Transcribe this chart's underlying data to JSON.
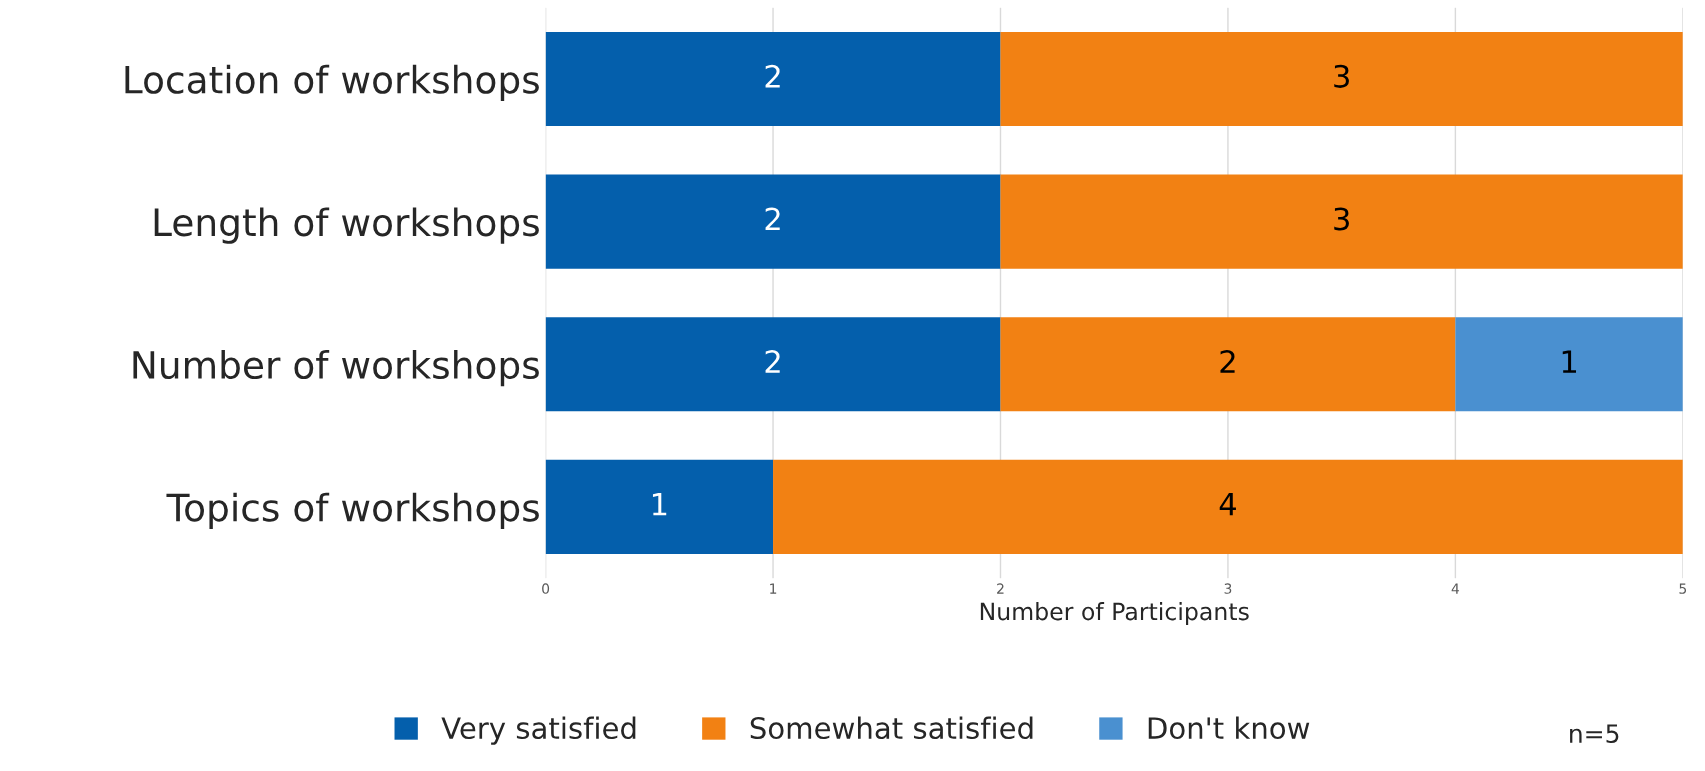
{
  "chart_data": {
    "type": "bar",
    "orientation": "horizontal",
    "stacked": true,
    "xlabel": "Number of Participants",
    "categories": [
      "Location of workshops",
      "Length of workshops",
      "Number of workshops",
      "Topics of workshops"
    ],
    "series": [
      {
        "name": "Very satisfied",
        "color": "#045fac",
        "values": [
          2,
          2,
          2,
          1
        ]
      },
      {
        "name": "Somewhat satisfied",
        "color": "#f28113",
        "values": [
          3,
          3,
          2,
          4
        ]
      },
      {
        "name": "Don't know",
        "color": "#4a90d0",
        "values": [
          null,
          null,
          1,
          null
        ]
      }
    ],
    "xlim": [
      0,
      5
    ],
    "xticks": [
      0,
      1,
      2,
      3,
      4,
      5
    ],
    "grid": "x",
    "legend": "bottom",
    "data_labels": true,
    "annotations": [
      "n=5"
    ]
  }
}
